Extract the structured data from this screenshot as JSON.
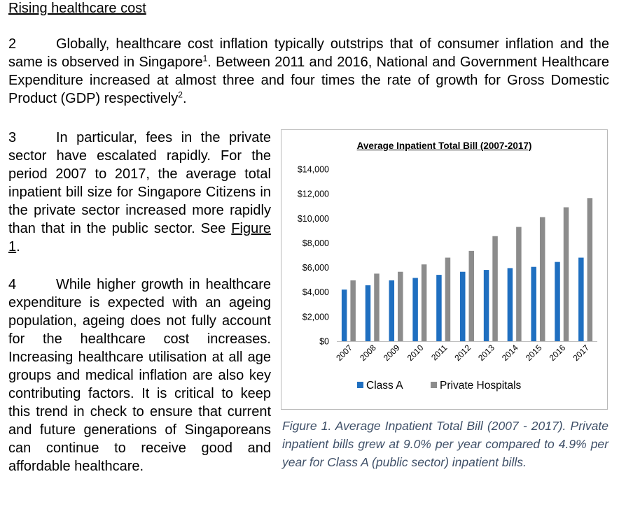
{
  "section": {
    "heading": "Rising healthcare cost"
  },
  "paragraphs": {
    "p2": {
      "number": "2",
      "text_a": "Globally, healthcare cost inflation typically outstrips that of consumer inflation and the same is observed in Singapore",
      "footnote_1": "1",
      "text_b": ". Between 2011 and 2016, National and Government Healthcare Expenditure increased at almost three and four times the rate of growth for Gross Domestic Product (GDP) respectively",
      "footnote_2": "2",
      "text_c": "."
    },
    "p3": {
      "number": "3",
      "text": "In particular, fees in the private sector have escalated rapidly. For the period 2007 to 2017, the average total inpatient bill size for Singapore Citizens in the private sector increased more rapidly than that in the public sector. See ",
      "link": "Figure 1",
      "text_end": "."
    },
    "p4": {
      "number": "4",
      "text": "While higher growth in healthcare expenditure is expected with an ageing population, ageing does not fully account for the healthcare cost increases. Increasing healthcare utilisation at all age groups and medical inflation are also key contributing factors. It is critical to keep this trend in check to ensure that current and future generations of Singaporeans can continue to receive good and affordable healthcare."
    }
  },
  "figure": {
    "caption": "Figure 1. Average Inpatient Total Bill (2007 - 2017). Private inpatient bills grew at 9.0% per year compared to 4.9% per year for Class A (public sector) inpatient bills."
  },
  "chart_data": {
    "type": "bar",
    "title": "Average Inpatient Total Bill (2007-2017)",
    "categories": [
      "2007",
      "2008",
      "2009",
      "2010",
      "2011",
      "2012",
      "2013",
      "2014",
      "2015",
      "2016",
      "2017"
    ],
    "series": [
      {
        "name": "Class A",
        "color": "#1f6fc0",
        "values": [
          4200,
          4550,
          4950,
          5150,
          5400,
          5650,
          5800,
          5950,
          6050,
          6450,
          6800
        ]
      },
      {
        "name": "Private Hospitals",
        "color": "#8c8c8c",
        "values": [
          4950,
          5500,
          5650,
          6250,
          6800,
          7350,
          8550,
          9300,
          10100,
          10900,
          11650
        ]
      }
    ],
    "ylim": [
      0,
      14000
    ],
    "yticks": [
      "$0",
      "$2,000",
      "$4,000",
      "$6,000",
      "$8,000",
      "$10,000",
      "$12,000",
      "$14,000"
    ],
    "legend_position": "bottom",
    "grid": false
  }
}
